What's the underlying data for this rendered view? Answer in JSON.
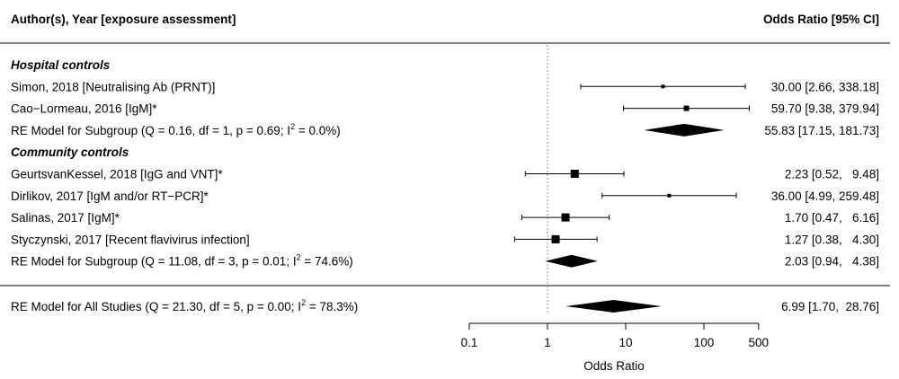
{
  "header": {
    "left": "Author(s), Year [exposure assessment]",
    "right": "Odds Ratio [95% CI]"
  },
  "chart_data": {
    "type": "forest",
    "xlabel": "Odds Ratio",
    "xscale": "log",
    "xlim": [
      0.1,
      500
    ],
    "xticks": [
      0.1,
      1,
      10,
      100,
      500
    ],
    "xtick_labels": [
      "0.1",
      "1",
      "10",
      "100",
      "500"
    ],
    "reference_line": 1,
    "rows": [
      {
        "kind": "group",
        "label": "Hospital controls"
      },
      {
        "kind": "study",
        "label": "Simon, 2018 [Neutralising Ab (PRNT)]",
        "est": 30.0,
        "lo": 2.66,
        "hi": 338.18,
        "weight": "small",
        "ci_text": "30.00 [2.66, 338.18]"
      },
      {
        "kind": "study",
        "label": "Cao−Lormeau, 2016 [IgM]*",
        "est": 59.7,
        "lo": 9.38,
        "hi": 379.94,
        "weight": "medium",
        "ci_text": "59.70 [9.38, 379.94]"
      },
      {
        "kind": "summary",
        "label": "RE Model for Subgroup (Q = 0.16, df = 1, p = 0.69; I",
        "label_sup": "2",
        "label_tail": " = 0.0%)",
        "est": 55.83,
        "lo": 17.15,
        "hi": 181.73,
        "ci_text": "55.83 [17.15, 181.73]"
      },
      {
        "kind": "group",
        "label": "Community controls"
      },
      {
        "kind": "study",
        "label": "GeurtsvanKessel, 2018 [IgG and VNT]*",
        "est": 2.23,
        "lo": 0.52,
        "hi": 9.48,
        "weight": "large",
        "ci_text": "2.23 [0.52,   9.48]"
      },
      {
        "kind": "study",
        "label": "Dirlikov, 2017 [IgM and/or RT−PCR]*",
        "est": 36.0,
        "lo": 4.99,
        "hi": 259.48,
        "weight": "small",
        "ci_text": "36.00 [4.99, 259.48]"
      },
      {
        "kind": "study",
        "label": "Salinas, 2017 [IgM]*",
        "est": 1.7,
        "lo": 0.47,
        "hi": 6.16,
        "weight": "large",
        "ci_text": "1.70 [0.47,   6.16]"
      },
      {
        "kind": "study",
        "label": "Styczynski, 2017 [Recent flavivirus infection]",
        "est": 1.27,
        "lo": 0.38,
        "hi": 4.3,
        "weight": "large",
        "ci_text": "1.27 [0.38,   4.30]"
      },
      {
        "kind": "summary",
        "label": "RE Model for Subgroup (Q = 11.08, df = 3, p = 0.01; I",
        "label_sup": "2",
        "label_tail": " = 74.6%)",
        "est": 2.03,
        "lo": 0.94,
        "hi": 4.38,
        "ci_text": "2.03 [0.94,   4.38]"
      }
    ],
    "overall": {
      "label": "RE Model for All Studies (Q = 21.30, df = 5, p = 0.00; I",
      "label_sup": "2",
      "label_tail": " = 78.3%)",
      "est": 6.99,
      "lo": 1.7,
      "hi": 28.76,
      "ci_text": "6.99 [1.70,  28.76]"
    }
  }
}
